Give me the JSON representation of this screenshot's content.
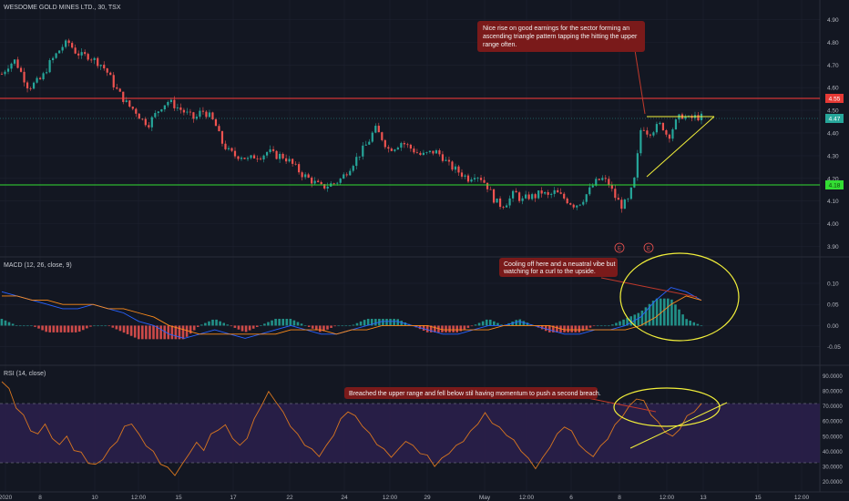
{
  "colors": {
    "background": "#131722",
    "grid": "#1e2230",
    "up": "#26a69a",
    "down": "#ef5350",
    "resistance": "#ff3b3b",
    "support": "#33dd33",
    "annotation_yellow": "#f2ef3a",
    "rsi": "#d9761f",
    "rsi_band": "#2a1f4a",
    "macd_line": "#2962ff",
    "signal_line": "#ff8c1a",
    "note_bg": "#7a1a1a"
  },
  "header": {
    "title": "WESDOME GOLD MINES LTD., 30, TSX"
  },
  "price_axis": {
    "ticks": [
      "4.90",
      "4.80",
      "4.70",
      "4.60",
      "4.50",
      "4.40",
      "4.30",
      "4.20",
      "4.10",
      "4.00",
      "3.90"
    ]
  },
  "price_levels": [
    {
      "label": "4.55",
      "kind": "resistance"
    },
    {
      "label": "4.47",
      "kind": "current"
    },
    {
      "label": "4.18",
      "kind": "support"
    }
  ],
  "macd_panel": {
    "title": "MACD (12, 26, close, 9)",
    "ticks": [
      "0.10",
      "0.05",
      "0.00",
      "-0.05"
    ]
  },
  "rsi_panel": {
    "title": "RSI (14, close)",
    "ticks": [
      "90.0000",
      "80.0000",
      "70.0000",
      "60.0000",
      "50.0000",
      "40.0000",
      "30.0000",
      "20.0000"
    ]
  },
  "annotations": [
    {
      "text": [
        "Nice rise on good earnings for the sector forming an",
        "ascending triangle pattern tapping the hitting the upper",
        "range often."
      ]
    },
    {
      "text": [
        "Cooling off here and a neuatral vibe but",
        "watching for a curl to the upside."
      ]
    },
    {
      "text": [
        "Breached the upper range and fell below stil having momentum to push a second breach."
      ]
    }
  ],
  "earnings_markers": [
    "E",
    "E"
  ],
  "dates": [
    "2020",
    "8",
    "10",
    "12:00",
    "15",
    "17",
    "22",
    "24",
    "12:00",
    "29",
    "May",
    "12:00",
    "6",
    "8",
    "12:00",
    "13",
    "15",
    "12:00"
  ],
  "chart_data": [
    {
      "type": "candlestick",
      "title": "WESDOME GOLD MINES LTD., 30, TSX",
      "ylim": [
        3.87,
        4.93
      ],
      "y_ticks": [
        4.9,
        4.8,
        4.7,
        4.6,
        4.5,
        4.4,
        4.3,
        4.2,
        4.1,
        4.0,
        3.9
      ],
      "x_ticks": [
        "2020",
        "8",
        "10",
        "12:00",
        "15",
        "17",
        "22",
        "24",
        "12:00",
        "29",
        "May",
        "12:00",
        "6",
        "8",
        "12:00",
        "13",
        "15",
        "12:00"
      ],
      "close_path": [
        4.66,
        4.7,
        4.72,
        4.66,
        4.6,
        4.62,
        4.64,
        4.7,
        4.74,
        4.78,
        4.8,
        4.76,
        4.74,
        4.74,
        4.72,
        4.7,
        4.66,
        4.6,
        4.56,
        4.52,
        4.5,
        4.46,
        4.44,
        4.48,
        4.52,
        4.54,
        4.52,
        4.5,
        4.48,
        4.46,
        4.5,
        4.48,
        4.44,
        4.36,
        4.32,
        4.3,
        4.3,
        4.28,
        4.3,
        4.3,
        4.32,
        4.3,
        4.3,
        4.28,
        4.25,
        4.22,
        4.2,
        4.18,
        4.16,
        4.17,
        4.18,
        4.2,
        4.24,
        4.28,
        4.32,
        4.36,
        4.42,
        4.38,
        4.33,
        4.34,
        4.36,
        4.34,
        4.32,
        4.3,
        4.31,
        4.32,
        4.3,
        4.26,
        4.24,
        4.22,
        4.2,
        4.22,
        4.2,
        4.16,
        4.1,
        4.08,
        4.1,
        4.14,
        4.1,
        4.12,
        4.12,
        4.14,
        4.12,
        4.14,
        4.12,
        4.1,
        4.08,
        4.1,
        4.14,
        4.18,
        4.2,
        4.18,
        4.12,
        4.08,
        4.1,
        4.2,
        4.44,
        4.4,
        4.42,
        4.44,
        4.38,
        4.44,
        4.48,
        4.46,
        4.47,
        4.47
      ],
      "levels": [
        {
          "name": "resistance",
          "y": 4.55
        },
        {
          "name": "current",
          "y": 4.47
        },
        {
          "name": "support",
          "y": 4.18
        }
      ]
    },
    {
      "type": "line",
      "title": "MACD (12, 26, close, 9)",
      "ylim": [
        -0.07,
        0.13
      ],
      "y_ticks": [
        0.1,
        0.05,
        0.0,
        -0.05
      ],
      "macd": [
        0.08,
        0.07,
        0.06,
        0.05,
        0.04,
        0.04,
        0.05,
        0.04,
        0.03,
        0.01,
        0.0,
        -0.02,
        -0.03,
        -0.02,
        -0.01,
        -0.02,
        -0.03,
        -0.02,
        -0.01,
        0.0,
        -0.01,
        -0.02,
        -0.02,
        -0.01,
        0.0,
        0.01,
        0.01,
        0.0,
        -0.01,
        -0.02,
        -0.02,
        -0.01,
        0.0,
        0.0,
        0.01,
        0.0,
        -0.01,
        -0.02,
        -0.02,
        -0.01,
        -0.01,
        0.0,
        0.02,
        0.06,
        0.09,
        0.08,
        0.06
      ],
      "signal": [
        0.07,
        0.07,
        0.06,
        0.06,
        0.05,
        0.05,
        0.05,
        0.04,
        0.04,
        0.03,
        0.02,
        0.0,
        -0.01,
        -0.02,
        -0.02,
        -0.02,
        -0.02,
        -0.02,
        -0.02,
        -0.01,
        -0.01,
        -0.01,
        -0.02,
        -0.01,
        -0.01,
        0.0,
        0.0,
        0.0,
        0.0,
        -0.01,
        -0.01,
        -0.01,
        -0.01,
        0.0,
        0.0,
        0.0,
        0.0,
        -0.01,
        -0.01,
        -0.01,
        -0.01,
        -0.01,
        0.0,
        0.02,
        0.05,
        0.07,
        0.06
      ]
    },
    {
      "type": "line",
      "title": "RSI (14, close)",
      "ylim": [
        15,
        95
      ],
      "y_ticks": [
        90,
        80,
        70,
        60,
        50,
        40,
        30,
        20
      ],
      "band": [
        30,
        70
      ],
      "values": [
        86,
        80,
        70,
        64,
        55,
        50,
        58,
        47,
        46,
        50,
        42,
        38,
        32,
        30,
        36,
        42,
        48,
        55,
        58,
        50,
        45,
        40,
        33,
        28,
        24,
        30,
        40,
        46,
        42,
        50,
        54,
        56,
        50,
        44,
        50,
        60,
        70,
        78,
        74,
        66,
        58,
        50,
        44,
        40,
        38,
        44,
        52,
        60,
        66,
        62,
        58,
        52,
        46,
        40,
        36,
        40,
        48,
        44,
        40,
        36,
        30,
        34,
        40,
        44,
        48,
        52,
        58,
        64,
        60,
        56,
        52,
        46,
        40,
        34,
        30,
        36,
        44,
        50,
        56,
        52,
        46,
        40,
        38,
        42,
        48,
        56,
        64,
        70,
        76,
        72,
        64,
        58,
        54,
        50,
        56,
        62,
        66,
        70
      ]
    }
  ]
}
